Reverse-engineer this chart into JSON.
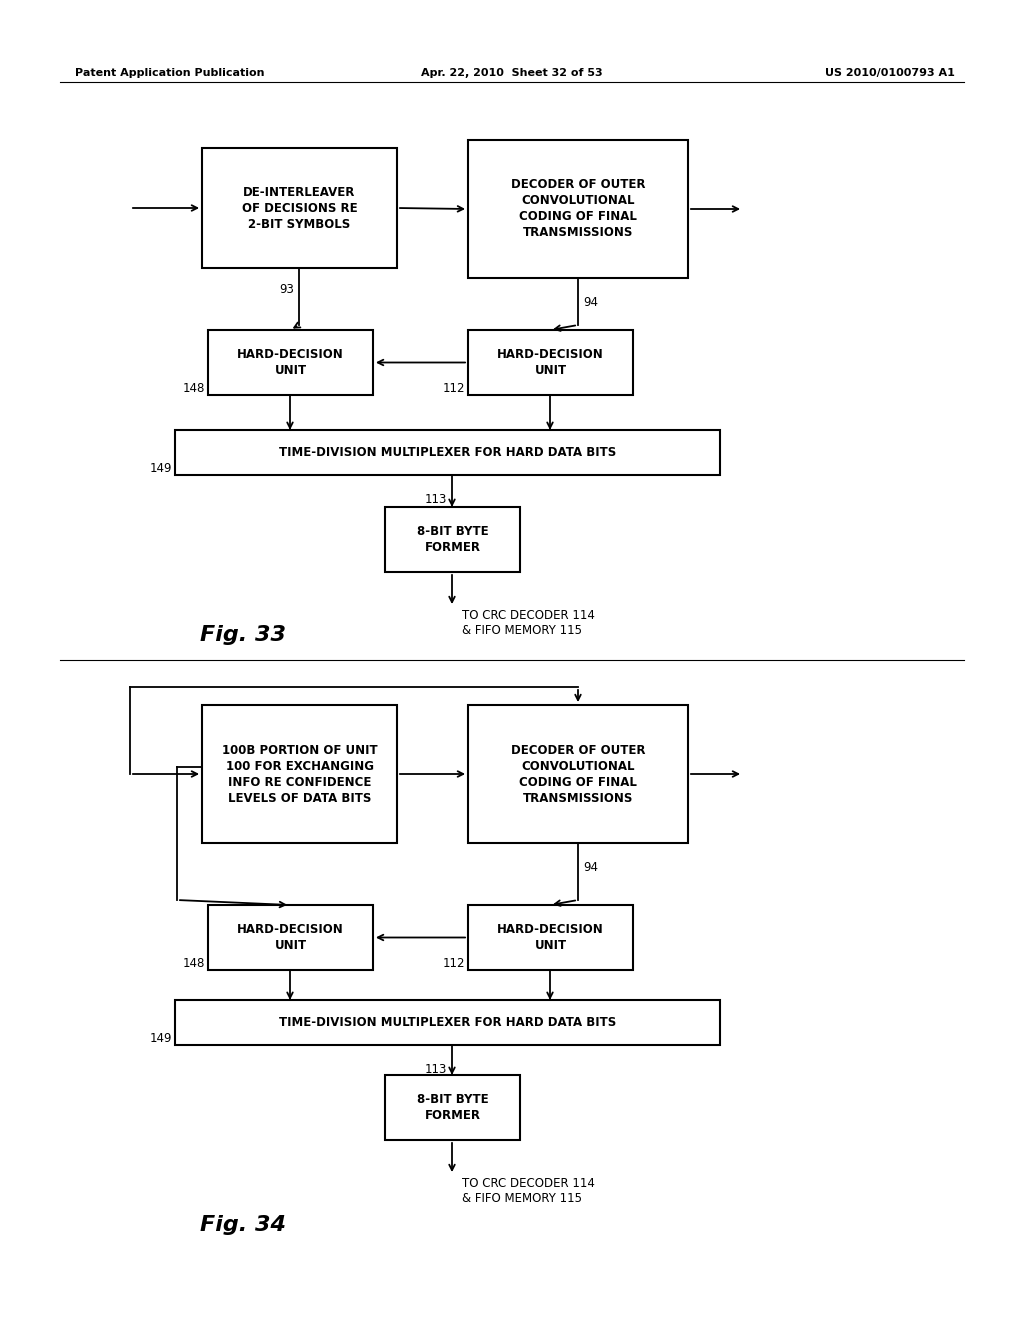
{
  "header_left": "Patent Application Publication",
  "header_mid": "Apr. 22, 2010  Sheet 32 of 53",
  "header_right": "US 2010/0100793 A1",
  "fig33_label": "Fig. 33",
  "fig34_label": "Fig. 34",
  "bg": "#ffffff",
  "box_fc": "#ffffff",
  "box_ec": "#000000",
  "tc": "#000000",
  "fig33": {
    "box1_text": "DE-INTERLEAVER\nOF DECISIONS RE\n2-BIT SYMBOLS",
    "box2_text": "DECODER OF OUTER\nCONVOLUTIONAL\nCODING OF FINAL\nTRANSMISSIONS",
    "box3_text": "HARD-DECISION\nUNIT",
    "box4_text": "HARD-DECISION\nUNIT",
    "box5_text": "TIME-DIVISION MULTIPLEXER FOR HARD DATA BITS",
    "box6_text": "8-BIT BYTE\nFORMER",
    "lbl_93": "93",
    "lbl_94": "94",
    "lbl_148": "148",
    "lbl_112": "112",
    "lbl_149": "149",
    "lbl_113": "113",
    "bot_text": "TO CRC DECODER 114\n& FIFO MEMORY 115"
  },
  "fig34": {
    "box1_text": "100B PORTION OF UNIT\n100 FOR EXCHANGING\nINFO RE CONFIDENCE\nLEVELS OF DATA BITS",
    "box2_text": "DECODER OF OUTER\nCONVOLUTIONAL\nCODING OF FINAL\nTRANSMISSIONS",
    "box3_text": "HARD-DECISION\nUNIT",
    "box4_text": "HARD-DECISION\nUNIT",
    "box5_text": "TIME-DIVISION MULTIPLEXER FOR HARD DATA BITS",
    "box6_text": "8-BIT BYTE\nFORMER",
    "lbl_94": "94",
    "lbl_148": "148",
    "lbl_112": "112",
    "lbl_149": "149",
    "lbl_113": "113",
    "bot_text": "TO CRC DECODER 114\n& FIFO MEMORY 115"
  }
}
